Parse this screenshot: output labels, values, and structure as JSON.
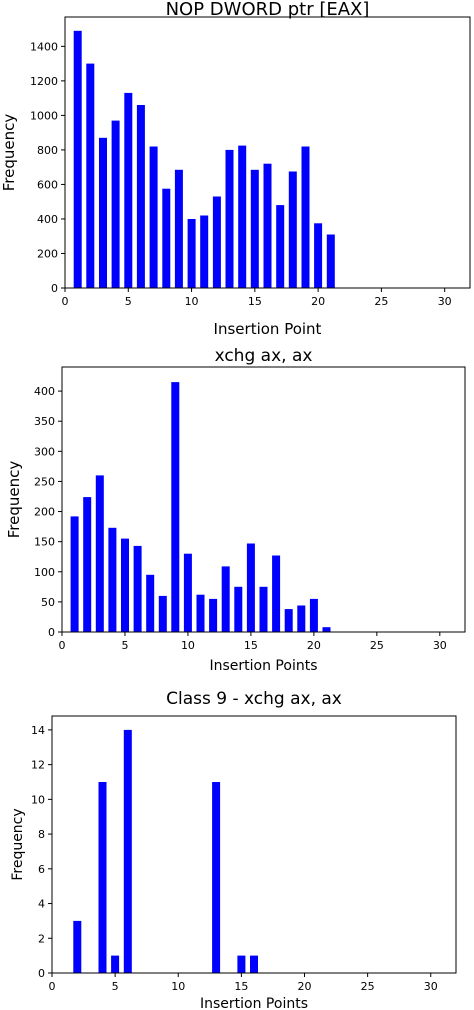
{
  "chart_data": [
    {
      "type": "bar",
      "title": "NOP DWORD ptr [EAX]",
      "xlabel": "Insertion Point",
      "ylabel": "Frequency",
      "xlim": [
        0,
        32
      ],
      "ylim": [
        0,
        1570
      ],
      "xticks": [
        0,
        5,
        10,
        15,
        20,
        25,
        30
      ],
      "yticks": [
        0,
        200,
        400,
        600,
        800,
        1000,
        1200,
        1400
      ],
      "bar_color": "#0000ff",
      "x": [
        1,
        2,
        3,
        4,
        5,
        6,
        7,
        8,
        9,
        10,
        11,
        12,
        13,
        14,
        15,
        16,
        17,
        18,
        19,
        20,
        21
      ],
      "values": [
        1490,
        1300,
        870,
        970,
        1130,
        1060,
        820,
        575,
        685,
        400,
        420,
        530,
        800,
        825,
        685,
        720,
        480,
        675,
        820,
        375,
        310
      ]
    },
    {
      "type": "bar",
      "title": "xchg ax, ax",
      "xlabel": "Insertion Points",
      "ylabel": "Frequency",
      "xlim": [
        0,
        32
      ],
      "ylim": [
        0,
        440
      ],
      "xticks": [
        0,
        5,
        10,
        15,
        20,
        25,
        30
      ],
      "yticks": [
        0,
        50,
        100,
        150,
        200,
        250,
        300,
        350,
        400
      ],
      "bar_color": "#0000ff",
      "x": [
        1,
        2,
        3,
        4,
        5,
        6,
        7,
        8,
        9,
        10,
        11,
        12,
        13,
        14,
        15,
        16,
        17,
        18,
        19,
        20,
        21
      ],
      "values": [
        192,
        224,
        260,
        173,
        155,
        143,
        95,
        60,
        415,
        130,
        62,
        55,
        109,
        75,
        147,
        75,
        127,
        38,
        44,
        55,
        8
      ]
    },
    {
      "type": "bar",
      "title": "Class 9 - xchg ax, ax",
      "xlabel": "Insertion Points",
      "ylabel": "Frequency",
      "xlim": [
        0,
        32
      ],
      "ylim": [
        0,
        14.8
      ],
      "xticks": [
        0,
        5,
        10,
        15,
        20,
        25,
        30
      ],
      "yticks": [
        0,
        2,
        4,
        6,
        8,
        10,
        12,
        14
      ],
      "bar_color": "#0000ff",
      "x": [
        2,
        4,
        5,
        6,
        13,
        15,
        16
      ],
      "values": [
        3,
        11,
        1,
        14,
        11,
        1,
        1
      ]
    }
  ]
}
